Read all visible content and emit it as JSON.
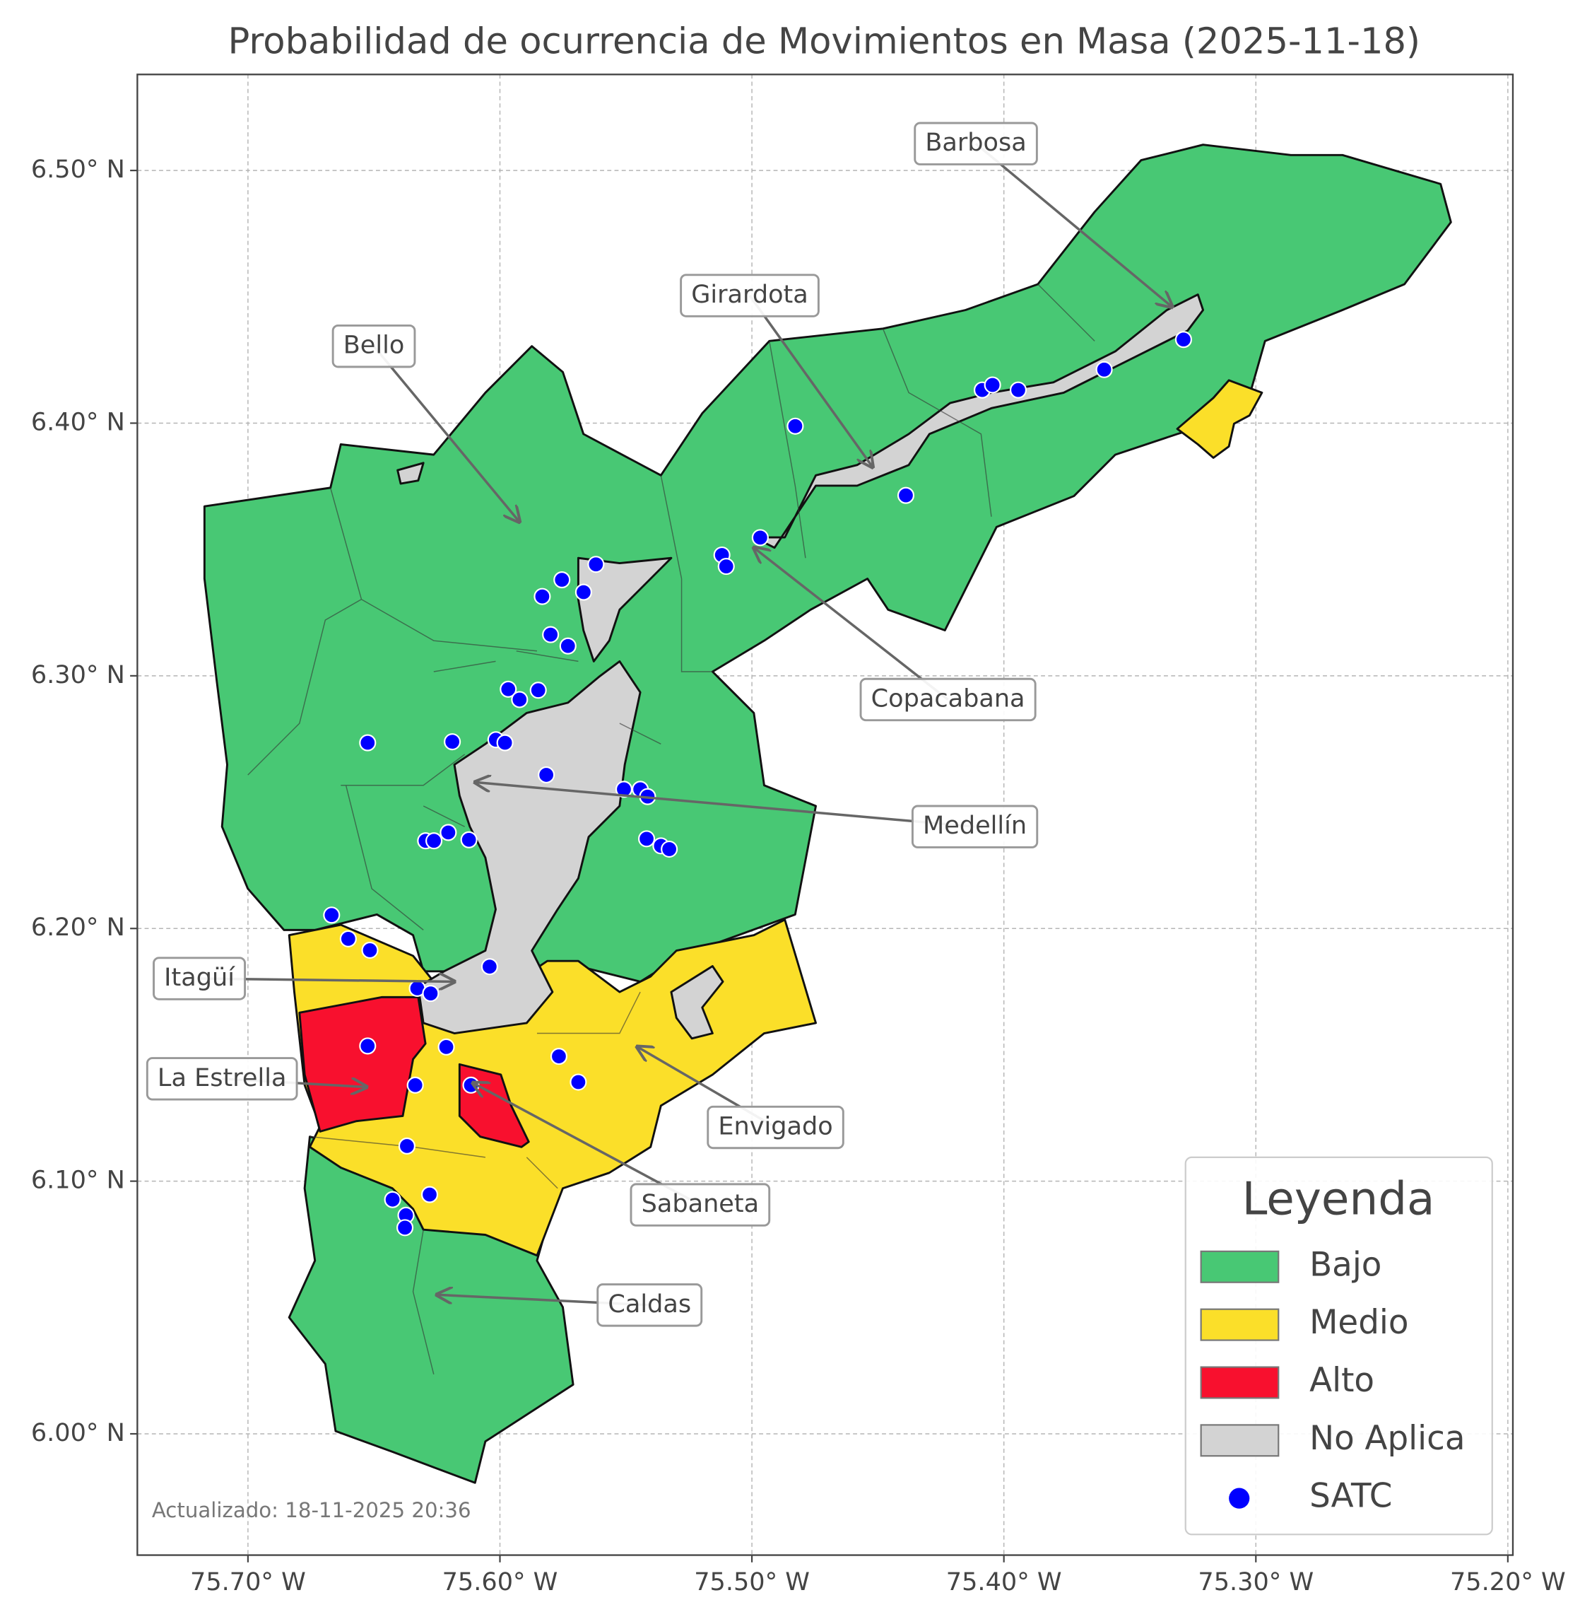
{
  "chart_data": {
    "type": "map",
    "title": "Probabilidad de ocurrencia de Movimientos en Masa (2025-11-18)",
    "xlim": [
      -75.7439,
      -75.198
    ],
    "ylim": [
      5.952,
      6.538
    ],
    "xticks": [
      {
        "value": -75.7,
        "label": "75.70° W"
      },
      {
        "value": -75.6,
        "label": "75.60° W"
      },
      {
        "value": -75.5,
        "label": "75.50° W"
      },
      {
        "value": -75.4,
        "label": "75.40° W"
      },
      {
        "value": -75.3,
        "label": "75.30° W"
      },
      {
        "value": -75.2,
        "label": "75.20° W"
      }
    ],
    "yticks": [
      {
        "value": 6.0,
        "label": "6.00° N"
      },
      {
        "value": 6.1,
        "label": "6.10° N"
      },
      {
        "value": 6.2,
        "label": "6.20° N"
      },
      {
        "value": 6.3,
        "label": "6.30° N"
      },
      {
        "value": 6.4,
        "label": "6.40° N"
      },
      {
        "value": 6.5,
        "label": "6.50° N"
      }
    ],
    "grid": true,
    "legend_title": "Leyenda",
    "legend_position": "lower right",
    "legend": [
      {
        "name": "Bajo",
        "color": "#48c874"
      },
      {
        "name": "Medio",
        "color": "#fbdf29"
      },
      {
        "name": "Alto",
        "color": "#f8102e"
      },
      {
        "name": "No Aplica",
        "color": "#d3d3d3"
      }
    ],
    "series": [
      {
        "name": "SATC",
        "color": "#0000ff",
        "x": [
          -75.3287,
          -75.3602,
          -75.4086,
          -75.4045,
          -75.3943,
          -75.4828,
          -75.4389,
          -75.4967,
          -75.5119,
          -75.5102,
          -75.5619,
          -75.5754,
          -75.5832,
          -75.5668,
          -75.5799,
          -75.573,
          -75.5967,
          -75.5848,
          -75.5922,
          -75.6525,
          -75.6189,
          -75.6016,
          -75.598,
          -75.5816,
          -75.5508,
          -75.5443,
          -75.5414,
          -75.5418,
          -75.5361,
          -75.5328,
          -75.6295,
          -75.6262,
          -75.6205,
          -75.6123,
          -75.6668,
          -75.6602,
          -75.6516,
          -75.6041,
          -75.6328,
          -75.6275,
          -75.6213,
          -75.6525,
          -75.5766,
          -75.5689,
          -75.6336,
          -75.6115,
          -75.6369,
          -75.6426,
          -75.6279,
          -75.6373,
          -75.6377
        ],
        "y": [
          6.4331,
          6.4212,
          6.4131,
          6.4151,
          6.4131,
          6.3988,
          6.3714,
          6.3547,
          6.3478,
          6.3433,
          6.3441,
          6.338,
          6.3314,
          6.3331,
          6.3163,
          6.3118,
          6.2947,
          6.2943,
          6.2906,
          6.2735,
          6.2739,
          6.2747,
          6.2735,
          6.2608,
          6.2551,
          6.2551,
          6.2522,
          6.2355,
          6.2327,
          6.2314,
          6.2347,
          6.2347,
          6.238,
          6.2351,
          6.2053,
          6.1959,
          6.1914,
          6.1849,
          6.1763,
          6.1743,
          6.1531,
          6.1535,
          6.1494,
          6.1392,
          6.138,
          6.138,
          6.1139,
          6.0927,
          6.0947,
          6.0865,
          6.0816
        ]
      }
    ],
    "annotations": [
      "Barbosa",
      "Girardota",
      "Bello",
      "Copacabana",
      "Medellín",
      "Itagüí",
      "La Estrella",
      "Envigado",
      "Sabaneta",
      "Caldas"
    ],
    "note": "Actualizado: 18-11-2025 20:36"
  }
}
